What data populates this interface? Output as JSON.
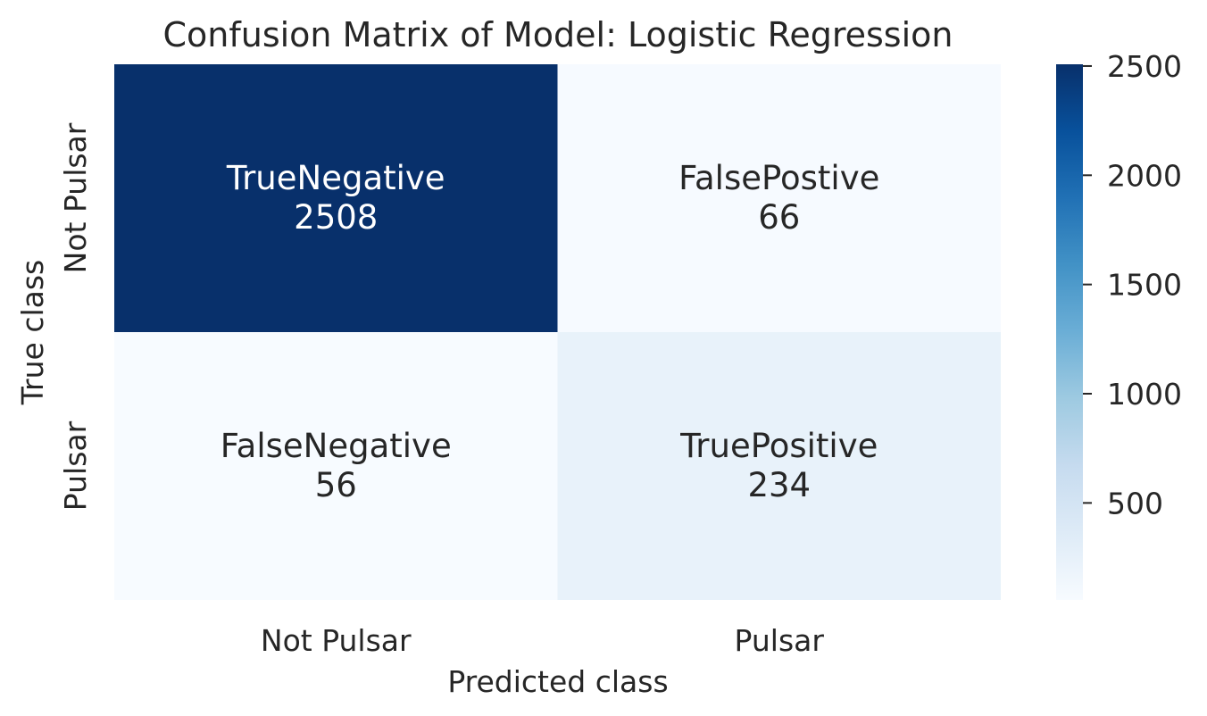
{
  "chart_data": {
    "type": "heatmap",
    "title": "Confusion Matrix of Model: Logistic Regression",
    "xlabel": "Predicted class",
    "ylabel": "True class",
    "x_categories": [
      "Not Pulsar",
      "Pulsar"
    ],
    "y_categories": [
      "Not Pulsar",
      "Pulsar"
    ],
    "values": [
      [
        2508,
        66
      ],
      [
        56,
        234
      ]
    ],
    "annotations": [
      [
        "TrueNegative",
        "FalsePostive"
      ],
      [
        "FalseNegative",
        "TruePositive"
      ]
    ],
    "colormap": "Blues",
    "colorbar": {
      "ticks": [
        500,
        1000,
        1500,
        2000,
        2500
      ],
      "tick_labels": [
        "500",
        "1000",
        "1500",
        "2000",
        "2500"
      ],
      "range": [
        56,
        2508
      ]
    },
    "colors": {
      "low": "#f7fbff",
      "high": "#08306b",
      "text_dark": "#262626",
      "text_light": "#ffffff"
    }
  }
}
